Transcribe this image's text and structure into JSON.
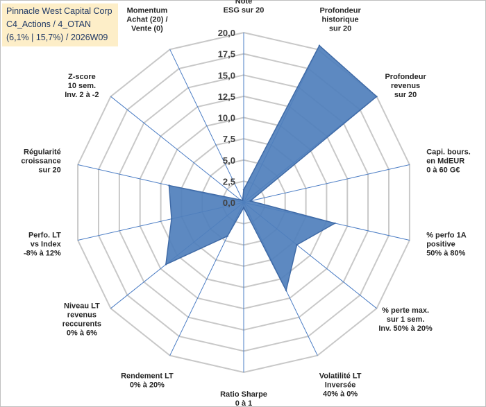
{
  "title": {
    "line1": "Pinnacle West Capital Corp",
    "line2": "C4_Actions / 4_OTAN",
    "line3": "(6,1% | 15,7%) / 2026W09"
  },
  "chart_data": {
    "type": "radar",
    "r_range": [
      0,
      20
    ],
    "ticks": [
      "0,0",
      "2,5",
      "5,0",
      "7,5",
      "10,0",
      "12,5",
      "15,0",
      "17,5",
      "20,0"
    ],
    "series": [
      {
        "name": "Pinnacle West Capital Corp",
        "color": "#4f7fbc",
        "line_color": "#3f6aa6"
      }
    ],
    "categories": [
      {
        "label": [
          "Note",
          "ESG sur 20"
        ],
        "value": 1.5
      },
      {
        "label": [
          "Profondeur",
          "historique",
          "sur 20"
        ],
        "value": 20.5
      },
      {
        "label": [
          "Profondeur",
          "revenus",
          "sur 20"
        ],
        "value": 20.0
      },
      {
        "label": [
          "Capi. bours.",
          "en MdEUR",
          "0 à 60 G€"
        ],
        "value": 0.8
      },
      {
        "label": [
          "% perfo 1A",
          "positive",
          "50% à 80%"
        ],
        "value": 11.0
      },
      {
        "label": [
          "% perte max.",
          "sur 1 sem.",
          "Inv. 50% à 20%"
        ],
        "value": 8.0
      },
      {
        "label": [
          "Volatilité LT",
          "Inversée",
          "40% à 0%"
        ],
        "value": 11.5
      },
      {
        "label": [
          "Ratio Sharpe",
          "0 à 1"
        ],
        "value": 0.6
      },
      {
        "label": [
          "Rendement LT",
          "0% à 20%"
        ],
        "value": 4.4
      },
      {
        "label": [
          "Niveau LT",
          "revenus",
          "reccurents",
          "0% à 6%"
        ],
        "value": 11.7
      },
      {
        "label": [
          "Perfo. LT",
          "vs Index",
          "-8% à 12%"
        ],
        "value": 8.7
      },
      {
        "label": [
          "Régularité",
          "croissance",
          "sur 20"
        ],
        "value": 9.0
      },
      {
        "label": [
          "Z-score",
          "10 sem.",
          "Inv. 2 à -2"
        ],
        "value": 0.5
      },
      {
        "label": [
          "Momentum",
          "Achat (20) /",
          "Vente (0)"
        ],
        "value": 0.3
      }
    ]
  }
}
